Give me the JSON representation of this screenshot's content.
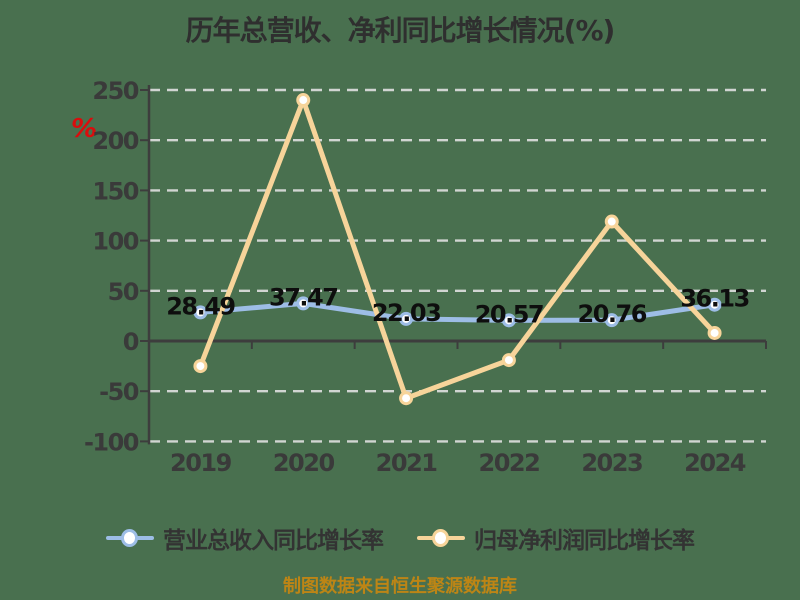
{
  "title": "历年总营收、净利同比增长情况(%)",
  "y_axis_unit": "%",
  "footer": "制图数据来自恒生聚源数据库",
  "colors": {
    "background": "#49704f",
    "grid": "#dddddd",
    "axis": "#3d3d3d",
    "title_text": "#2f2f2f",
    "tick_text": "#3a3a3a",
    "data_label": "#0e0e0e",
    "footer_text": "#bd8515",
    "unit_symbol": "#d90d0d",
    "marker_fill": "#ffffff",
    "revenue_series": "#9dbde6",
    "profit_series": "#f7d49a"
  },
  "legend": {
    "items": [
      {
        "label": "营业总收入同比增长率",
        "color": "#9dbde6"
      },
      {
        "label": "归母净利润同比增长率",
        "color": "#f7d49a"
      }
    ]
  },
  "chart_data": {
    "type": "line",
    "title": "历年总营收、净利同比增长情况(%)",
    "categories": [
      "2019",
      "2020",
      "2021",
      "2022",
      "2023",
      "2024"
    ],
    "series": [
      {
        "name": "营业总收入同比增长率",
        "color": "#9dbde6",
        "values": [
          28.49,
          37.47,
          22.03,
          20.57,
          20.76,
          36.13
        ],
        "labels_shown": true,
        "values_estimated": false
      },
      {
        "name": "归母净利润同比增长率",
        "color": "#f7d49a",
        "values": [
          -25,
          240,
          -57,
          -19,
          119,
          8
        ],
        "labels_shown": false,
        "values_estimated": true
      }
    ],
    "yticks": [
      250,
      200,
      150,
      100,
      50,
      0,
      -50,
      -100
    ],
    "ylim": [
      -100,
      250
    ],
    "grid": "dashed-horizontal",
    "legend_position": "bottom",
    "xlabel": "",
    "ylabel": "%"
  }
}
